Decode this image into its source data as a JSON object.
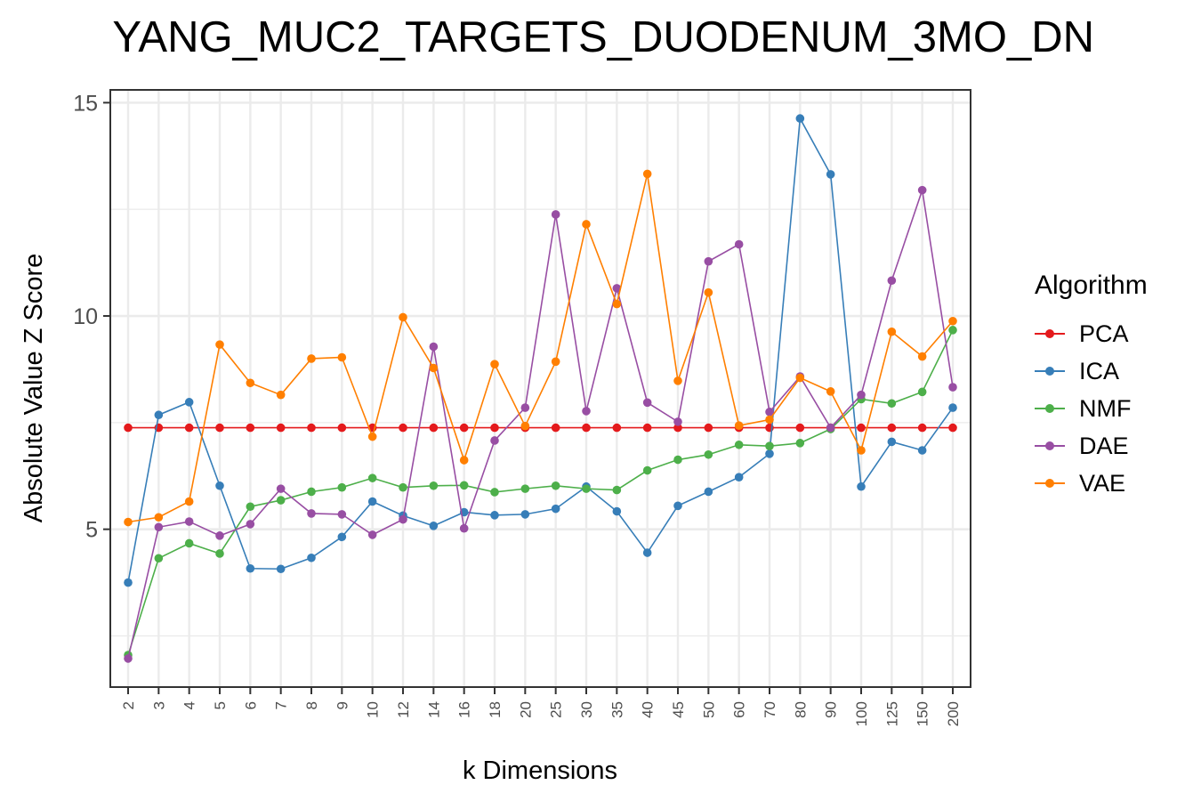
{
  "chart_data": {
    "type": "line",
    "title": "YANG_MUC2_TARGETS_DUODENUM_3MO_DN",
    "xlabel": "k Dimensions",
    "ylabel": "Absolute Value Z Score",
    "categories": [
      "2",
      "3",
      "4",
      "5",
      "6",
      "7",
      "8",
      "9",
      "10",
      "12",
      "14",
      "16",
      "18",
      "20",
      "25",
      "30",
      "35",
      "40",
      "45",
      "50",
      "60",
      "70",
      "80",
      "90",
      "100",
      "125",
      "150",
      "200"
    ],
    "ylim": [
      1.3,
      15.3
    ],
    "yticks": [
      5,
      10,
      15
    ],
    "grid": true,
    "legend_title": "Algorithm",
    "legend_position": "right",
    "series": [
      {
        "name": "PCA",
        "color": "#E41A1C",
        "values": [
          7.38,
          7.38,
          7.38,
          7.38,
          7.38,
          7.38,
          7.38,
          7.38,
          7.38,
          7.38,
          7.38,
          7.38,
          7.38,
          7.38,
          7.38,
          7.38,
          7.38,
          7.38,
          7.38,
          7.38,
          7.38,
          7.38,
          7.38,
          7.38,
          7.38,
          7.38,
          7.38,
          7.38
        ]
      },
      {
        "name": "ICA",
        "color": "#377EB8",
        "values": [
          3.75,
          7.68,
          7.98,
          6.02,
          4.08,
          4.07,
          4.33,
          4.82,
          5.65,
          5.32,
          5.08,
          5.4,
          5.33,
          5.35,
          5.48,
          6.0,
          5.42,
          4.45,
          5.55,
          5.88,
          6.22,
          6.77,
          14.63,
          13.32,
          6.0,
          7.05,
          6.85,
          7.85
        ]
      },
      {
        "name": "NMF",
        "color": "#4DAF4A",
        "values": [
          2.05,
          4.32,
          4.67,
          4.43,
          5.53,
          5.68,
          5.88,
          5.98,
          6.2,
          5.98,
          6.02,
          6.03,
          5.87,
          5.95,
          6.02,
          5.95,
          5.92,
          6.38,
          6.63,
          6.75,
          6.98,
          6.95,
          7.02,
          7.35,
          8.05,
          7.95,
          8.22,
          9.67
        ]
      },
      {
        "name": "DAE",
        "color": "#984EA3",
        "values": [
          1.97,
          5.05,
          5.18,
          4.85,
          5.12,
          5.95,
          5.37,
          5.35,
          4.87,
          5.23,
          9.28,
          5.02,
          7.08,
          7.85,
          12.38,
          7.77,
          10.65,
          7.97,
          7.52,
          11.28,
          11.68,
          7.75,
          8.58,
          7.38,
          8.15,
          10.83,
          12.95,
          8.33
        ]
      },
      {
        "name": "VAE",
        "color": "#FF7F00",
        "values": [
          5.17,
          5.28,
          5.65,
          9.33,
          8.43,
          8.15,
          9.0,
          9.03,
          7.17,
          9.97,
          8.78,
          6.62,
          8.87,
          7.42,
          8.93,
          12.15,
          10.28,
          13.33,
          8.48,
          10.55,
          7.43,
          7.57,
          8.55,
          8.23,
          6.85,
          9.63,
          9.05,
          9.88
        ]
      }
    ]
  }
}
